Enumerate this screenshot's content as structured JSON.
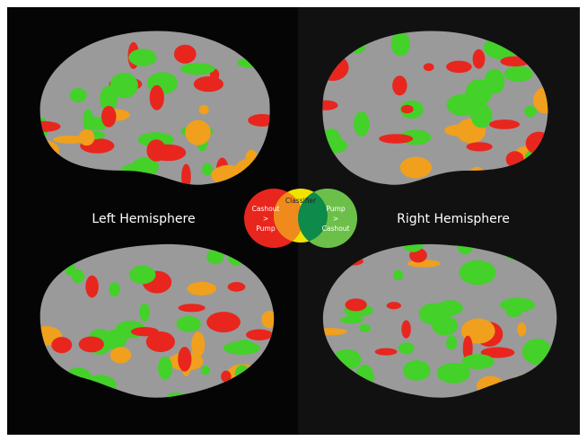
{
  "labels": {
    "left": "Left Hemisphere",
    "right": "Right Hemisphere"
  },
  "legend": {
    "left_circle": [
      "Cashout",
      ">",
      "Pump"
    ],
    "center_circle": "Classifier",
    "right_circle": [
      "Pump",
      ">",
      "Cashout"
    ]
  }
}
